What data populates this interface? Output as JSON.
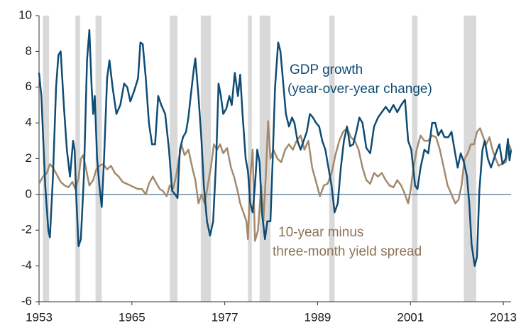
{
  "chart_data": {
    "type": "line",
    "xlim": [
      1953,
      2014
    ],
    "xticks": [
      1953,
      1965,
      1977,
      1989,
      2001,
      2013
    ],
    "ylim": [
      -6,
      10
    ],
    "yticks": [
      -6,
      -4,
      -2,
      0,
      2,
      4,
      6,
      8,
      10
    ],
    "recessions": [
      [
        1953.5,
        1954.3
      ],
      [
        1957.7,
        1958.3
      ],
      [
        1960.3,
        1961.1
      ],
      [
        1969.9,
        1970.9
      ],
      [
        1973.9,
        1975.2
      ],
      [
        1980.0,
        1980.5
      ],
      [
        1981.5,
        1982.9
      ],
      [
        1990.5,
        1991.2
      ],
      [
        2001.2,
        2001.9
      ],
      [
        2007.9,
        2009.5
      ]
    ],
    "recession_color": "#d9d9d9",
    "zero_line_color": "#1f4e79",
    "series": [
      {
        "name": "GDP growth",
        "color": "#0f4c75",
        "x": [
          1953,
          1953.3,
          1953.8,
          1954.2,
          1954.4,
          1954.8,
          1955.2,
          1955.5,
          1955.8,
          1956.2,
          1956.6,
          1957.0,
          1957.4,
          1957.6,
          1957.8,
          1958.1,
          1958.4,
          1958.8,
          1959.2,
          1959.5,
          1959.8,
          1960.0,
          1960.2,
          1960.5,
          1960.8,
          1961.1,
          1961.4,
          1961.8,
          1962.1,
          1962.5,
          1963.0,
          1963.5,
          1964.0,
          1964.4,
          1964.8,
          1965.3,
          1965.8,
          1966.1,
          1966.4,
          1966.8,
          1967.2,
          1967.6,
          1968.0,
          1968.4,
          1968.8,
          1969.3,
          1969.8,
          1970.2,
          1970.6,
          1970.9,
          1971.2,
          1971.6,
          1972.0,
          1972.3,
          1972.6,
          1973.0,
          1973.2,
          1973.6,
          1974.0,
          1974.3,
          1974.7,
          1975.1,
          1975.5,
          1975.9,
          1976.2,
          1976.5,
          1976.8,
          1977.2,
          1977.6,
          1977.9,
          1978.3,
          1978.7,
          1979.0,
          1979.3,
          1979.7,
          1980.0,
          1980.3,
          1980.6,
          1980.9,
          1981.2,
          1981.5,
          1981.8,
          1982.2,
          1982.5,
          1982.9,
          1983.2,
          1983.5,
          1983.9,
          1984.2,
          1984.5,
          1984.9,
          1985.3,
          1985.7,
          1986.0,
          1986.4,
          1986.8,
          1987.2,
          1987.6,
          1988.0,
          1988.4,
          1988.8,
          1989.2,
          1989.6,
          1990.0,
          1990.4,
          1990.8,
          1991.2,
          1991.6,
          1992.0,
          1992.4,
          1992.8,
          1993.2,
          1993.6,
          1994.0,
          1994.4,
          1994.8,
          1995.3,
          1995.8,
          1996.3,
          1996.8,
          1997.3,
          1997.8,
          1998.3,
          1998.8,
          1999.3,
          1999.8,
          2000.3,
          2000.7,
          2001.1,
          2001.6,
          2001.9,
          2002.3,
          2002.8,
          2003.3,
          2003.8,
          2004.2,
          2004.6,
          2005.0,
          2005.4,
          2005.9,
          2006.3,
          2006.7,
          2007.1,
          2007.5,
          2007.9,
          2008.3,
          2008.6,
          2008.9,
          2009.3,
          2009.6,
          2009.9,
          2010.3,
          2010.6,
          2011.0,
          2011.4,
          2011.8,
          2012.2,
          2012.5,
          2012.9,
          2013.3,
          2013.6,
          2013.8,
          2014.0
        ],
        "values": [
          6.8,
          5.5,
          0.5,
          -2.0,
          -2.4,
          1,
          6,
          7.8,
          8.0,
          5,
          2.5,
          1.0,
          3.0,
          2.5,
          0,
          -2.9,
          -2.5,
          1,
          7.5,
          9.2,
          6,
          4.5,
          5.5,
          2,
          0.5,
          -0.7,
          2,
          6.5,
          7.5,
          6,
          4.5,
          5,
          6.2,
          6.0,
          5.2,
          5.8,
          6.5,
          8.5,
          8.4,
          6.5,
          4,
          2.8,
          2.8,
          5.5,
          5.0,
          4.5,
          2.5,
          0.2,
          0,
          -0.2,
          2.5,
          3.2,
          3.5,
          4.3,
          5.5,
          7.0,
          7.6,
          5.5,
          3,
          0.5,
          -1.5,
          -2.3,
          -1.5,
          2,
          6.2,
          5.5,
          4.5,
          4.8,
          5.5,
          5.0,
          6.8,
          5.5,
          6.7,
          4.5,
          2.0,
          1.3,
          -0.5,
          -1,
          0.5,
          2.5,
          1.8,
          -1,
          -2.5,
          -1.5,
          -1.5,
          2,
          6,
          8.5,
          8.0,
          6.5,
          4.5,
          3.8,
          4.3,
          4,
          3.0,
          2.5,
          3.0,
          3.5,
          4.5,
          4.3,
          4.0,
          3.8,
          3.0,
          2.5,
          1.5,
          0.5,
          -1.0,
          -0.5,
          1.5,
          3.0,
          3.8,
          2.7,
          2.8,
          3.5,
          4.3,
          4.0,
          2.6,
          2.3,
          3.8,
          4.3,
          4.6,
          4.9,
          4.6,
          5.0,
          4.6,
          5.0,
          5.3,
          3.0,
          2.5,
          0.5,
          0.3,
          1.5,
          2.5,
          2.3,
          4.0,
          4.0,
          3.3,
          3.6,
          3.2,
          3.2,
          3.5,
          2.5,
          1.5,
          2.3,
          1.8,
          1.0,
          -0.5,
          -2.8,
          -4.0,
          -3.5,
          0.2,
          2.5,
          3.0,
          2.0,
          1.5,
          2.0,
          2.5,
          2.8,
          1.7,
          2.0,
          3.1,
          1.9,
          2.5
        ]
      },
      {
        "name": "10-year minus three-month yield spread",
        "color": "#a38a6d",
        "x": [
          1953,
          1953.5,
          1954,
          1954.4,
          1954.8,
          1955.3,
          1955.8,
          1956.3,
          1956.8,
          1957.3,
          1957.7,
          1958.1,
          1958.4,
          1958.7,
          1959.0,
          1959.5,
          1960.0,
          1960.4,
          1960.8,
          1961.3,
          1961.8,
          1962.3,
          1962.8,
          1963.3,
          1963.8,
          1964.3,
          1964.8,
          1965.3,
          1965.8,
          1966.3,
          1966.8,
          1967.2,
          1967.7,
          1968.2,
          1968.6,
          1969.0,
          1969.5,
          1969.9,
          1970.3,
          1970.7,
          1971.0,
          1971.4,
          1971.8,
          1972.3,
          1972.8,
          1973.2,
          1973.6,
          1974.0,
          1974.4,
          1974.8,
          1975.2,
          1975.6,
          1976.0,
          1976.4,
          1976.8,
          1977.3,
          1977.8,
          1978.2,
          1978.6,
          1979.0,
          1979.4,
          1979.8,
          1980.0,
          1980.3,
          1980.6,
          1980.9,
          1981.3,
          1981.7,
          1982.0,
          1982.3,
          1982.6,
          1982.9,
          1983.3,
          1983.8,
          1984.3,
          1984.8,
          1985.3,
          1985.8,
          1986.3,
          1986.8,
          1987.3,
          1987.8,
          1988.3,
          1988.8,
          1989.3,
          1989.8,
          1990.3,
          1990.8,
          1991.3,
          1991.8,
          1992.3,
          1992.8,
          1993.3,
          1993.8,
          1994.3,
          1994.8,
          1995.3,
          1995.8,
          1996.3,
          1996.8,
          1997.3,
          1997.8,
          1998.3,
          1998.8,
          1999.3,
          1999.8,
          2000.3,
          2000.7,
          2001.0,
          2001.4,
          2001.8,
          2002.3,
          2002.8,
          2003.3,
          2003.8,
          2004.3,
          2004.8,
          2005.3,
          2005.8,
          2006.3,
          2006.8,
          2007.2,
          2007.6,
          2008.0,
          2008.4,
          2008.8,
          2009.2,
          2009.6,
          2010.0,
          2010.4,
          2010.8,
          2011.2,
          2011.6,
          2012.0,
          2012.4,
          2012.8,
          2013.3,
          2013.7,
          2014.0
        ],
        "values": [
          0.6,
          1.0,
          1.2,
          1.7,
          1.5,
          1.1,
          0.7,
          0.5,
          0.4,
          0.7,
          0.3,
          0.9,
          2.0,
          2.2,
          1.6,
          0.5,
          0.8,
          1.4,
          1.6,
          1.7,
          1.4,
          1.6,
          1.2,
          1.0,
          0.7,
          0.6,
          0.5,
          0.4,
          0.3,
          0.3,
          0,
          0.6,
          1.0,
          0.6,
          0.3,
          0.2,
          -0.1,
          0.5,
          0.3,
          1.0,
          1.8,
          2.8,
          2.2,
          2.5,
          1.5,
          0.8,
          -0.5,
          0,
          -0.5,
          0.5,
          1.5,
          2.8,
          2.5,
          2.8,
          2.3,
          2.6,
          1.5,
          1.0,
          0.3,
          -0.5,
          -1,
          -1.5,
          -2.5,
          1.0,
          2.5,
          -2.6,
          -2.0,
          0.5,
          -1.5,
          1.0,
          4.1,
          2.0,
          2.5,
          2.0,
          1.8,
          2.5,
          2.8,
          2.5,
          3.0,
          3.3,
          2.5,
          3.0,
          1.5,
          0.7,
          -0.1,
          0.5,
          0.6,
          1.2,
          2.2,
          3.0,
          3.5,
          3.7,
          3.2,
          3.0,
          2.5,
          1.5,
          0.8,
          0.6,
          1.2,
          1.0,
          1.2,
          0.8,
          0.5,
          0.4,
          0.8,
          0.5,
          0,
          -0.5,
          0.2,
          1.5,
          2.5,
          3.3,
          3.0,
          3.0,
          3.3,
          3.2,
          2.5,
          1.5,
          0.5,
          0,
          -0.5,
          -0.3,
          0.5,
          2.0,
          2.3,
          2.8,
          2.8,
          3.5,
          3.7,
          3.2,
          2.8,
          3.2,
          2.5,
          2.0,
          1.6,
          1.7,
          1.8,
          2.8,
          2.5
        ]
      }
    ],
    "annotations": [
      "GDP growth",
      "(year-over-year change)",
      "10-year minus",
      "three-month yield spread"
    ]
  }
}
